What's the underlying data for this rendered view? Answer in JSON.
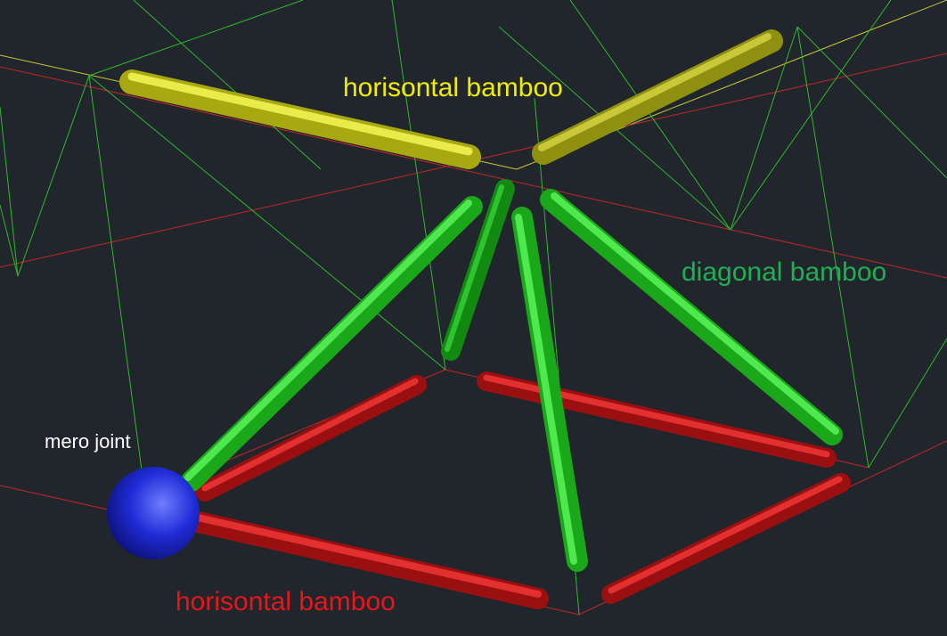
{
  "labels": [
    {
      "text": "horisontal bamboo"
    },
    {
      "text": "diagonal bamboo"
    },
    {
      "text": "mero joint"
    },
    {
      "text": "horisontal bamboo"
    }
  ]
}
